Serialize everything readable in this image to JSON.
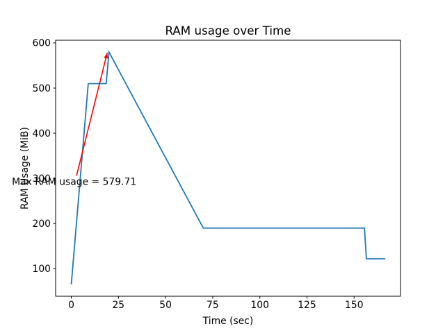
{
  "figure": {
    "background": "#ffffff"
  },
  "chart_data": {
    "type": "line",
    "title": "RAM usage over Time",
    "xlabel": "Time (sec)",
    "ylabel": "RAM Usage (MiB)",
    "x_ticks": [
      0,
      25,
      50,
      75,
      100,
      125,
      150
    ],
    "y_ticks": [
      100,
      200,
      300,
      400,
      500,
      600
    ],
    "xlim": [
      -8.3,
      174.6
    ],
    "ylim": [
      39,
      606
    ],
    "grid": false,
    "legend": false,
    "series": [
      {
        "name": "RAM usage",
        "color": "#1f77b4",
        "x": [
          0,
          9,
          18.5,
          20,
          70,
          155.5,
          156.5,
          166.5
        ],
        "y": [
          65,
          510,
          510,
          579.71,
          190,
          190,
          122,
          122
        ]
      }
    ],
    "annotation": {
      "text": "Max RAM usage = 579.71",
      "color": "#ff0000",
      "xy": [
        20,
        579.71
      ],
      "arrow_tail": [
        2.8,
        306
      ],
      "text_pos": [
        -31.5,
        286
      ]
    }
  }
}
